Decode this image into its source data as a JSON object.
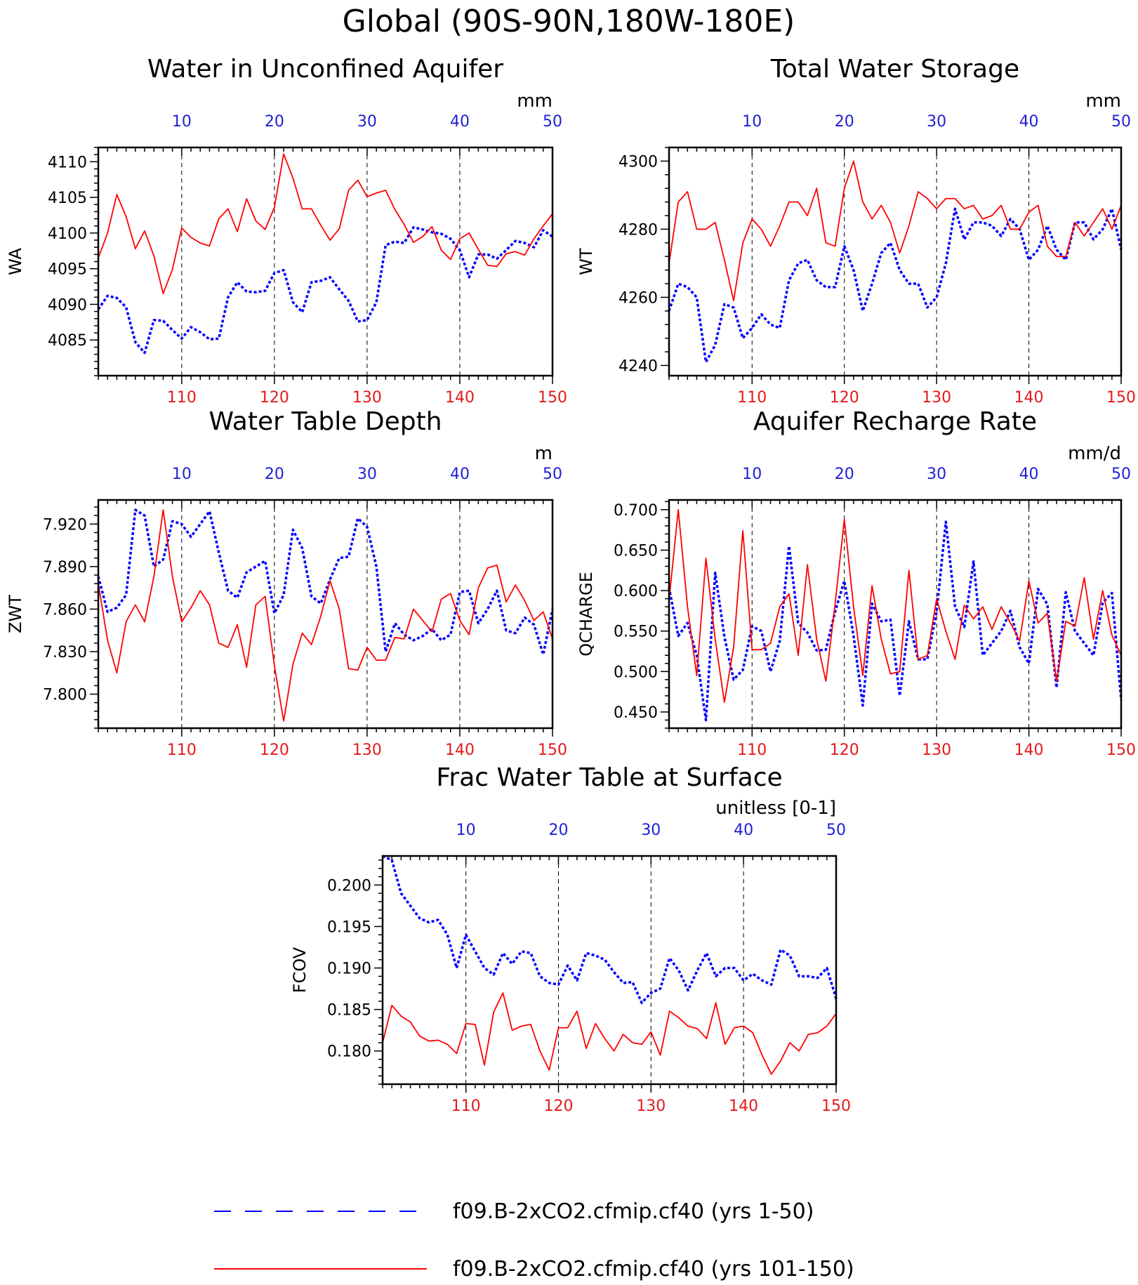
{
  "title": "Global (90S-90N,180W-180E)",
  "colors": {
    "blue": "#0000ff",
    "red": "#ff0000"
  },
  "legend": [
    {
      "label": "f09.B-2xCO2.cfmip.cf40 (yrs 1-50)",
      "style": "dashed",
      "color": "#0000ff"
    },
    {
      "label": "f09.B-2xCO2.cfmip.cf40 (yrs 101-150)",
      "style": "solid",
      "color": "#ff0000"
    }
  ],
  "chart_data": [
    {
      "type": "line",
      "title": "Water in Unconfined Aquifer",
      "units": "mm",
      "ylabel": "WA",
      "ylim": [
        4080,
        4112
      ],
      "yticks": [
        4085,
        4090,
        4095,
        4100,
        4105,
        4110
      ],
      "ytick_labels": [
        "4085",
        "4090",
        "4095",
        "4100",
        "4105",
        "4110"
      ],
      "x_bottom_ticks": [
        "110",
        "120",
        "130",
        "140",
        "150"
      ],
      "x_top_ticks": [
        "10",
        "20",
        "30",
        "40",
        "50"
      ],
      "series": [
        {
          "color": "#0000ff",
          "style": "dotted",
          "values": [
            4089.3,
            4091.2,
            4090.9,
            4089.6,
            4084.7,
            4083.2,
            4087.8,
            4087.7,
            4086.4,
            4085.2,
            4086.8,
            4086.1,
            4085.1,
            4085.2,
            4091.0,
            4093.1,
            4091.8,
            4091.7,
            4091.9,
            4094.4,
            4094.8,
            4090.3,
            4088.9,
            4093.1,
            4093.3,
            4093.8,
            4092.1,
            4090.5,
            4087.6,
            4087.8,
            4090.3,
            4098.3,
            4098.8,
            4098.6,
            4100.8,
            4100.5,
            4100.1,
            4099.9,
            4099.2,
            4097.6,
            4093.8,
            4097.0,
            4097.0,
            4096.4,
            4097.6,
            4098.9,
            4098.6,
            4098.0,
            4100.4,
            4099.5
          ]
        },
        {
          "color": "#ff0000",
          "style": "solid",
          "values": [
            4096.5,
            4100.0,
            4105.4,
            4102.3,
            4097.8,
            4100.3,
            4096.8,
            4091.5,
            4094.9,
            4100.7,
            4099.4,
            4098.6,
            4098.2,
            4102.0,
            4103.4,
            4100.2,
            4104.8,
            4101.7,
            4100.5,
            4103.6,
            4111.1,
            4107.7,
            4103.4,
            4103.4,
            4101.1,
            4099.0,
            4100.6,
            4106.0,
            4107.4,
            4105.1,
            4105.6,
            4106.0,
            4103.3,
            4101.2,
            4098.7,
            4099.5,
            4100.9,
            4097.6,
            4096.3,
            4099.2,
            4100.0,
            4097.7,
            4095.5,
            4095.3,
            4097.1,
            4097.4,
            4096.9,
            4099.2,
            4101.0,
            4102.7
          ]
        }
      ]
    },
    {
      "type": "line",
      "title": "Total Water Storage",
      "units": "mm",
      "ylabel": "WT",
      "ylim": [
        4237,
        4304
      ],
      "yticks": [
        4240,
        4260,
        4280,
        4300
      ],
      "ytick_labels": [
        "4240",
        "4260",
        "4280",
        "4300"
      ],
      "x_bottom_ticks": [
        "110",
        "120",
        "130",
        "140",
        "150"
      ],
      "x_top_ticks": [
        "10",
        "20",
        "30",
        "40",
        "50"
      ],
      "series": [
        {
          "color": "#0000ff",
          "style": "dotted",
          "values": [
            4256,
            4264,
            4263,
            4260,
            4241,
            4246,
            4258,
            4257,
            4248,
            4251,
            4255,
            4252,
            4251,
            4265,
            4270,
            4271,
            4265,
            4263,
            4263,
            4275,
            4268,
            4256,
            4264,
            4273,
            4276,
            4268,
            4264,
            4264,
            4257,
            4260,
            4270,
            4286,
            4277,
            4282,
            4282,
            4281,
            4278,
            4283,
            4280,
            4271,
            4274,
            4281,
            4274,
            4271,
            4282,
            4282,
            4277,
            4280,
            4286,
            4274
          ]
        },
        {
          "color": "#ff0000",
          "style": "solid",
          "values": [
            4270,
            4288,
            4291,
            4280,
            4280,
            4282,
            4271,
            4259,
            4276,
            4283,
            4280,
            4275,
            4281,
            4288,
            4288,
            4284,
            4292,
            4276,
            4275,
            4292,
            4300,
            4288,
            4283,
            4287,
            4282,
            4273,
            4281,
            4291,
            4289,
            4286,
            4289,
            4289,
            4286,
            4287,
            4283,
            4284,
            4287,
            4280,
            4280,
            4285,
            4287,
            4275,
            4272,
            4272,
            4282,
            4278,
            4282,
            4286,
            4280,
            4287
          ]
        }
      ]
    },
    {
      "type": "line",
      "title": "Water Table Depth",
      "units": "m",
      "ylabel": "ZWT",
      "ylim": [
        7.776,
        7.937
      ],
      "yticks": [
        7.8,
        7.83,
        7.86,
        7.89,
        7.92
      ],
      "ytick_labels": [
        "7.800",
        "7.830",
        "7.860",
        "7.890",
        "7.920"
      ],
      "x_bottom_ticks": [
        "110",
        "120",
        "130",
        "140",
        "150"
      ],
      "x_top_ticks": [
        "10",
        "20",
        "30",
        "40",
        "50"
      ],
      "series": [
        {
          "color": "#0000ff",
          "style": "dotted",
          "values": [
            7.883,
            7.858,
            7.861,
            7.87,
            7.93,
            7.926,
            7.89,
            7.895,
            7.922,
            7.92,
            7.911,
            7.92,
            7.929,
            7.9,
            7.873,
            7.868,
            7.886,
            7.89,
            7.894,
            7.857,
            7.87,
            7.916,
            7.903,
            7.869,
            7.864,
            7.881,
            7.896,
            7.897,
            7.924,
            7.918,
            7.89,
            7.83,
            7.85,
            7.842,
            7.838,
            7.841,
            7.846,
            7.838,
            7.842,
            7.872,
            7.873,
            7.85,
            7.86,
            7.873,
            7.845,
            7.843,
            7.854,
            7.849,
            7.828,
            7.86
          ]
        },
        {
          "color": "#ff0000",
          "style": "solid",
          "values": [
            7.878,
            7.838,
            7.815,
            7.851,
            7.863,
            7.851,
            7.883,
            7.93,
            7.883,
            7.851,
            7.861,
            7.873,
            7.863,
            7.836,
            7.833,
            7.849,
            7.819,
            7.863,
            7.869,
            7.82,
            7.781,
            7.821,
            7.843,
            7.835,
            7.855,
            7.88,
            7.86,
            7.818,
            7.817,
            7.833,
            7.824,
            7.824,
            7.84,
            7.839,
            7.86,
            7.852,
            7.844,
            7.867,
            7.871,
            7.852,
            7.842,
            7.875,
            7.889,
            7.891,
            7.865,
            7.877,
            7.866,
            7.852,
            7.858,
            7.839
          ]
        }
      ]
    },
    {
      "type": "line",
      "title": "Aquifer Recharge Rate",
      "units": "mm/d",
      "ylabel": "QCHARGE",
      "ylim": [
        0.43,
        0.712
      ],
      "yticks": [
        0.45,
        0.5,
        0.55,
        0.6,
        0.65,
        0.7
      ],
      "ytick_labels": [
        "0.450",
        "0.500",
        "0.550",
        "0.600",
        "0.650",
        "0.700"
      ],
      "x_bottom_ticks": [
        "110",
        "120",
        "130",
        "140",
        "150"
      ],
      "x_top_ticks": [
        "10",
        "20",
        "30",
        "40",
        "50"
      ],
      "series": [
        {
          "color": "#0000ff",
          "style": "dotted",
          "values": [
            0.604,
            0.544,
            0.56,
            0.52,
            0.44,
            0.622,
            0.543,
            0.49,
            0.502,
            0.556,
            0.55,
            0.5,
            0.538,
            0.655,
            0.56,
            0.548,
            0.526,
            0.527,
            0.574,
            0.612,
            0.544,
            0.458,
            0.584,
            0.562,
            0.564,
            0.47,
            0.562,
            0.515,
            0.515,
            0.574,
            0.685,
            0.58,
            0.555,
            0.636,
            0.52,
            0.535,
            0.55,
            0.575,
            0.53,
            0.51,
            0.602,
            0.583,
            0.48,
            0.598,
            0.55,
            0.535,
            0.52,
            0.585,
            0.597,
            0.465
          ]
        },
        {
          "color": "#ff0000",
          "style": "solid",
          "values": [
            0.588,
            0.7,
            0.58,
            0.495,
            0.64,
            0.54,
            0.462,
            0.53,
            0.674,
            0.527,
            0.527,
            0.535,
            0.58,
            0.596,
            0.52,
            0.632,
            0.54,
            0.488,
            0.584,
            0.688,
            0.58,
            0.495,
            0.606,
            0.54,
            0.497,
            0.5,
            0.625,
            0.515,
            0.52,
            0.59,
            0.55,
            0.515,
            0.582,
            0.565,
            0.58,
            0.552,
            0.58,
            0.56,
            0.538,
            0.612,
            0.56,
            0.572,
            0.488,
            0.562,
            0.556,
            0.616,
            0.54,
            0.6,
            0.545,
            0.52
          ]
        }
      ]
    },
    {
      "type": "line",
      "title": "Frac Water Table at Surface",
      "units": "unitless [0-1]",
      "ylabel": "FCOV",
      "ylim": [
        0.176,
        0.2035
      ],
      "yticks": [
        0.18,
        0.185,
        0.19,
        0.195,
        0.2
      ],
      "ytick_labels": [
        "0.180",
        "0.185",
        "0.190",
        "0.195",
        "0.200"
      ],
      "x_bottom_ticks": [
        "110",
        "120",
        "130",
        "140",
        "150"
      ],
      "x_top_ticks": [
        "10",
        "20",
        "30",
        "40",
        "50"
      ],
      "series": [
        {
          "color": "#0000ff",
          "style": "dotted",
          "values": [
            0.2035,
            0.203,
            0.199,
            0.1975,
            0.196,
            0.1955,
            0.1958,
            0.194,
            0.19,
            0.194,
            0.192,
            0.19,
            0.1892,
            0.1918,
            0.1905,
            0.192,
            0.1918,
            0.189,
            0.1882,
            0.188,
            0.1903,
            0.1885,
            0.1918,
            0.1915,
            0.191,
            0.1895,
            0.1882,
            0.1883,
            0.1858,
            0.187,
            0.1875,
            0.1912,
            0.1897,
            0.1873,
            0.1897,
            0.1918,
            0.189,
            0.19,
            0.19,
            0.1885,
            0.1893,
            0.1885,
            0.188,
            0.1922,
            0.1915,
            0.189,
            0.189,
            0.1888,
            0.19,
            0.1863
          ]
        },
        {
          "color": "#ff0000",
          "style": "solid",
          "values": [
            0.181,
            0.1855,
            0.1842,
            0.1835,
            0.1818,
            0.1812,
            0.1813,
            0.1808,
            0.1797,
            0.1833,
            0.1832,
            0.1783,
            0.1847,
            0.187,
            0.1825,
            0.183,
            0.1832,
            0.18,
            0.1777,
            0.1828,
            0.1828,
            0.1848,
            0.1803,
            0.1833,
            0.1815,
            0.18,
            0.182,
            0.181,
            0.1808,
            0.1823,
            0.1795,
            0.1848,
            0.184,
            0.183,
            0.1827,
            0.1815,
            0.1858,
            0.1808,
            0.1828,
            0.183,
            0.1822,
            0.1795,
            0.1772,
            0.1788,
            0.181,
            0.18,
            0.182,
            0.1822,
            0.183,
            0.1845
          ]
        }
      ]
    }
  ]
}
